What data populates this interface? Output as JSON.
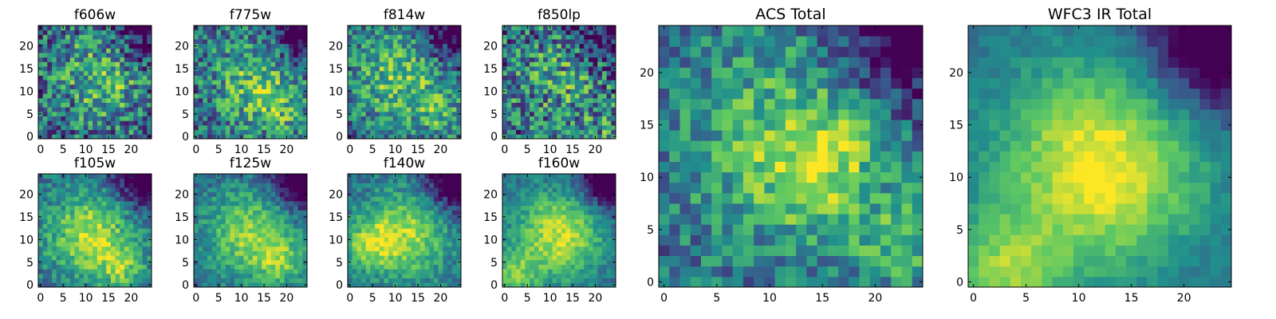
{
  "chart_data": [
    {
      "type": "heatmap",
      "title": "f606w",
      "xlim": [
        0,
        24
      ],
      "ylim": [
        0,
        24
      ],
      "x_ticks": [
        "0",
        "5",
        "10",
        "15",
        "20"
      ],
      "y_ticks": [
        "0",
        "5",
        "10",
        "15",
        "20"
      ],
      "colormap": "viridis",
      "hot_spots": [
        [
          14,
          13
        ]
      ],
      "noise": 0.7,
      "sharpness": 0.35
    },
    {
      "type": "heatmap",
      "title": "f775w",
      "xlim": [
        0,
        24
      ],
      "ylim": [
        0,
        24
      ],
      "x_ticks": [
        "0",
        "5",
        "10",
        "15",
        "20"
      ],
      "y_ticks": [
        "0",
        "5",
        "10",
        "15",
        "20"
      ],
      "colormap": "viridis",
      "hot_spots": [
        [
          13,
          12
        ],
        [
          18,
          6
        ]
      ],
      "noise": 0.6,
      "sharpness": 0.4
    },
    {
      "type": "heatmap",
      "title": "f814w",
      "xlim": [
        0,
        24
      ],
      "ylim": [
        0,
        24
      ],
      "x_ticks": [
        "0",
        "5",
        "10",
        "15",
        "20"
      ],
      "y_ticks": [
        "0",
        "5",
        "10",
        "15",
        "20"
      ],
      "colormap": "viridis",
      "hot_spots": [
        [
          11,
          13
        ],
        [
          20,
          5
        ]
      ],
      "noise": 0.55,
      "sharpness": 0.45
    },
    {
      "type": "heatmap",
      "title": "f850lp",
      "xlim": [
        0,
        24
      ],
      "ylim": [
        0,
        24
      ],
      "x_ticks": [
        "0",
        "5",
        "10",
        "15",
        "20"
      ],
      "y_ticks": [
        "0",
        "5",
        "10",
        "15",
        "20"
      ],
      "colormap": "viridis",
      "hot_spots": [
        [
          12,
          12
        ],
        [
          22,
          2
        ]
      ],
      "noise": 0.75,
      "sharpness": 0.25
    },
    {
      "type": "heatmap",
      "title": "f105w",
      "xlim": [
        0,
        24
      ],
      "ylim": [
        0,
        24
      ],
      "x_ticks": [
        "0",
        "5",
        "10",
        "15",
        "20"
      ],
      "y_ticks": [
        "0",
        "5",
        "10",
        "15",
        "20"
      ],
      "colormap": "viridis",
      "hot_spots": [
        [
          11,
          11
        ],
        [
          18,
          4
        ]
      ],
      "noise": 0.35,
      "sharpness": 0.6
    },
    {
      "type": "heatmap",
      "title": "f125w",
      "xlim": [
        0,
        24
      ],
      "ylim": [
        0,
        24
      ],
      "x_ticks": [
        "0",
        "5",
        "10",
        "15",
        "20"
      ],
      "y_ticks": [
        "0",
        "5",
        "10",
        "15",
        "20"
      ],
      "colormap": "viridis",
      "hot_spots": [
        [
          12,
          11
        ],
        [
          19,
          5
        ]
      ],
      "noise": 0.3,
      "sharpness": 0.55
    },
    {
      "type": "heatmap",
      "title": "f140w",
      "xlim": [
        0,
        24
      ],
      "ylim": [
        0,
        24
      ],
      "x_ticks": [
        "0",
        "5",
        "10",
        "15",
        "20"
      ],
      "y_ticks": [
        "0",
        "5",
        "10",
        "15",
        "20"
      ],
      "colormap": "viridis",
      "hot_spots": [
        [
          12,
          11
        ],
        [
          4,
          9
        ]
      ],
      "noise": 0.3,
      "sharpness": 0.6
    },
    {
      "type": "heatmap",
      "title": "f160w",
      "xlim": [
        0,
        24
      ],
      "ylim": [
        0,
        24
      ],
      "x_ticks": [
        "0",
        "5",
        "10",
        "15",
        "20"
      ],
      "y_ticks": [
        "0",
        "5",
        "10",
        "15",
        "20"
      ],
      "colormap": "viridis",
      "hot_spots": [
        [
          12,
          11
        ],
        [
          2,
          2
        ]
      ],
      "noise": 0.25,
      "sharpness": 0.65
    },
    {
      "type": "heatmap",
      "title": "ACS Total",
      "xlim": [
        0,
        24
      ],
      "ylim": [
        0,
        24
      ],
      "x_ticks": [
        "0",
        "5",
        "10",
        "15",
        "20"
      ],
      "y_ticks": [
        "0",
        "5",
        "10",
        "15",
        "20"
      ],
      "colormap": "viridis",
      "hot_spots": [
        [
          12,
          13
        ],
        [
          15,
          11
        ],
        [
          23,
          3
        ]
      ],
      "noise": 0.45,
      "sharpness": 0.45
    },
    {
      "type": "heatmap",
      "title": "WFC3 IR Total",
      "xlim": [
        0,
        24
      ],
      "ylim": [
        0,
        24
      ],
      "x_ticks": [
        "0",
        "5",
        "10",
        "15",
        "20"
      ],
      "y_ticks": [
        "0",
        "5",
        "10",
        "15",
        "20"
      ],
      "colormap": "viridis",
      "hot_spots": [
        [
          12,
          11
        ],
        [
          3,
          1
        ]
      ],
      "noise": 0.15,
      "sharpness": 0.75
    }
  ],
  "colors": {
    "viridis_stops": [
      "#440154",
      "#3b528b",
      "#21918c",
      "#5ec962",
      "#fde725"
    ]
  }
}
